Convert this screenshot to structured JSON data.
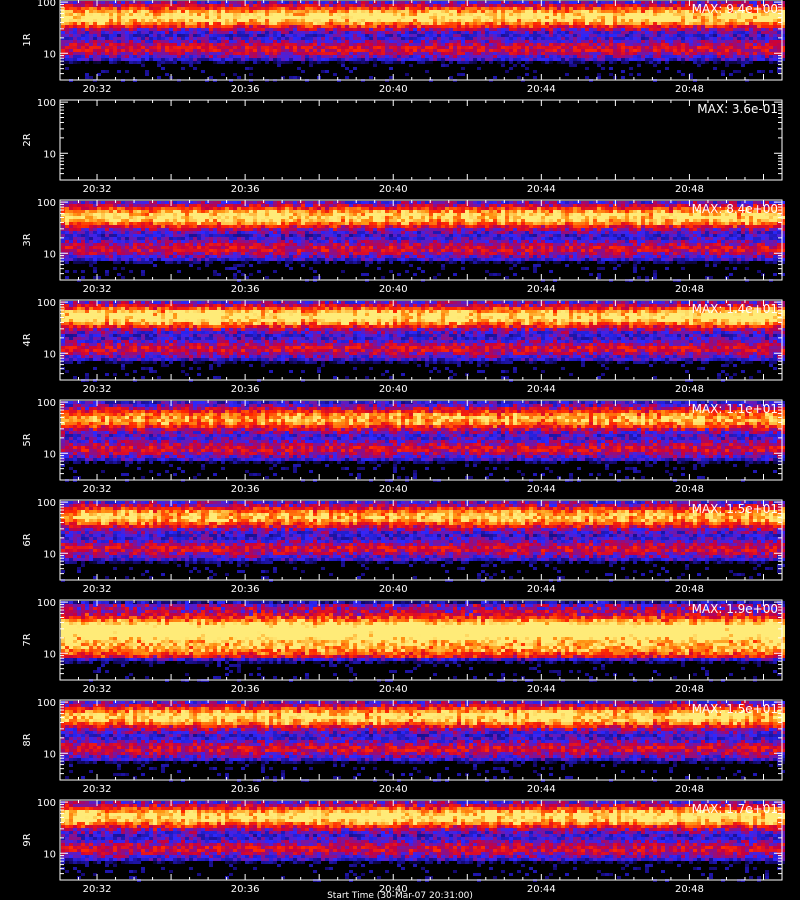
{
  "chart_data": {
    "type": "heatmap",
    "x_tick_labels": [
      "20:32",
      "20:36",
      "20:40",
      "20:44",
      "20:48"
    ],
    "y_tick_labels": [
      "100",
      "10"
    ],
    "y_scale": "log",
    "ylim": [
      3,
      110
    ],
    "footer_text": "Start Time (30-Mar-07 20:31:00)",
    "colors": {
      "background": "#000000",
      "axes": "#ffffff",
      "low": "#1a0a8c",
      "mid": "#2b2bff",
      "high": "#ff2a00",
      "peak": "#ffd040"
    },
    "panels": [
      {
        "label": "1R",
        "max_text": "MAX: 9.4e+00",
        "max": 9.4,
        "band_center": 55,
        "band_strength": 0.85,
        "blank": false
      },
      {
        "label": "2R",
        "max_text": "MAX: 3.6e-01",
        "max": 0.36,
        "band_center": 55,
        "band_strength": 0.0,
        "blank": true
      },
      {
        "label": "3R",
        "max_text": "MAX: 8.4e+00",
        "max": 8.4,
        "band_center": 55,
        "band_strength": 0.8,
        "blank": false
      },
      {
        "label": "4R",
        "max_text": "MAX: 1.4e+01",
        "max": 14,
        "band_center": 55,
        "band_strength": 0.85,
        "blank": false
      },
      {
        "label": "5R",
        "max_text": "MAX: 1.1e+01",
        "max": 11,
        "band_center": 50,
        "band_strength": 0.7,
        "blank": false
      },
      {
        "label": "6R",
        "max_text": "MAX: 1.5e+01",
        "max": 15,
        "band_center": 55,
        "band_strength": 0.75,
        "blank": false
      },
      {
        "label": "7R",
        "max_text": "MAX: 1.9e+00",
        "max": 1.9,
        "band_center": 30,
        "band_strength": 0.8,
        "blank": false
      },
      {
        "label": "8R",
        "max_text": "MAX: 1.5e+01",
        "max": 15,
        "band_center": 55,
        "band_strength": 0.8,
        "blank": false
      },
      {
        "label": "9R",
        "max_text": "MAX: 1.7e+01",
        "max": 17,
        "band_center": 55,
        "band_strength": 0.85,
        "blank": false
      }
    ]
  }
}
